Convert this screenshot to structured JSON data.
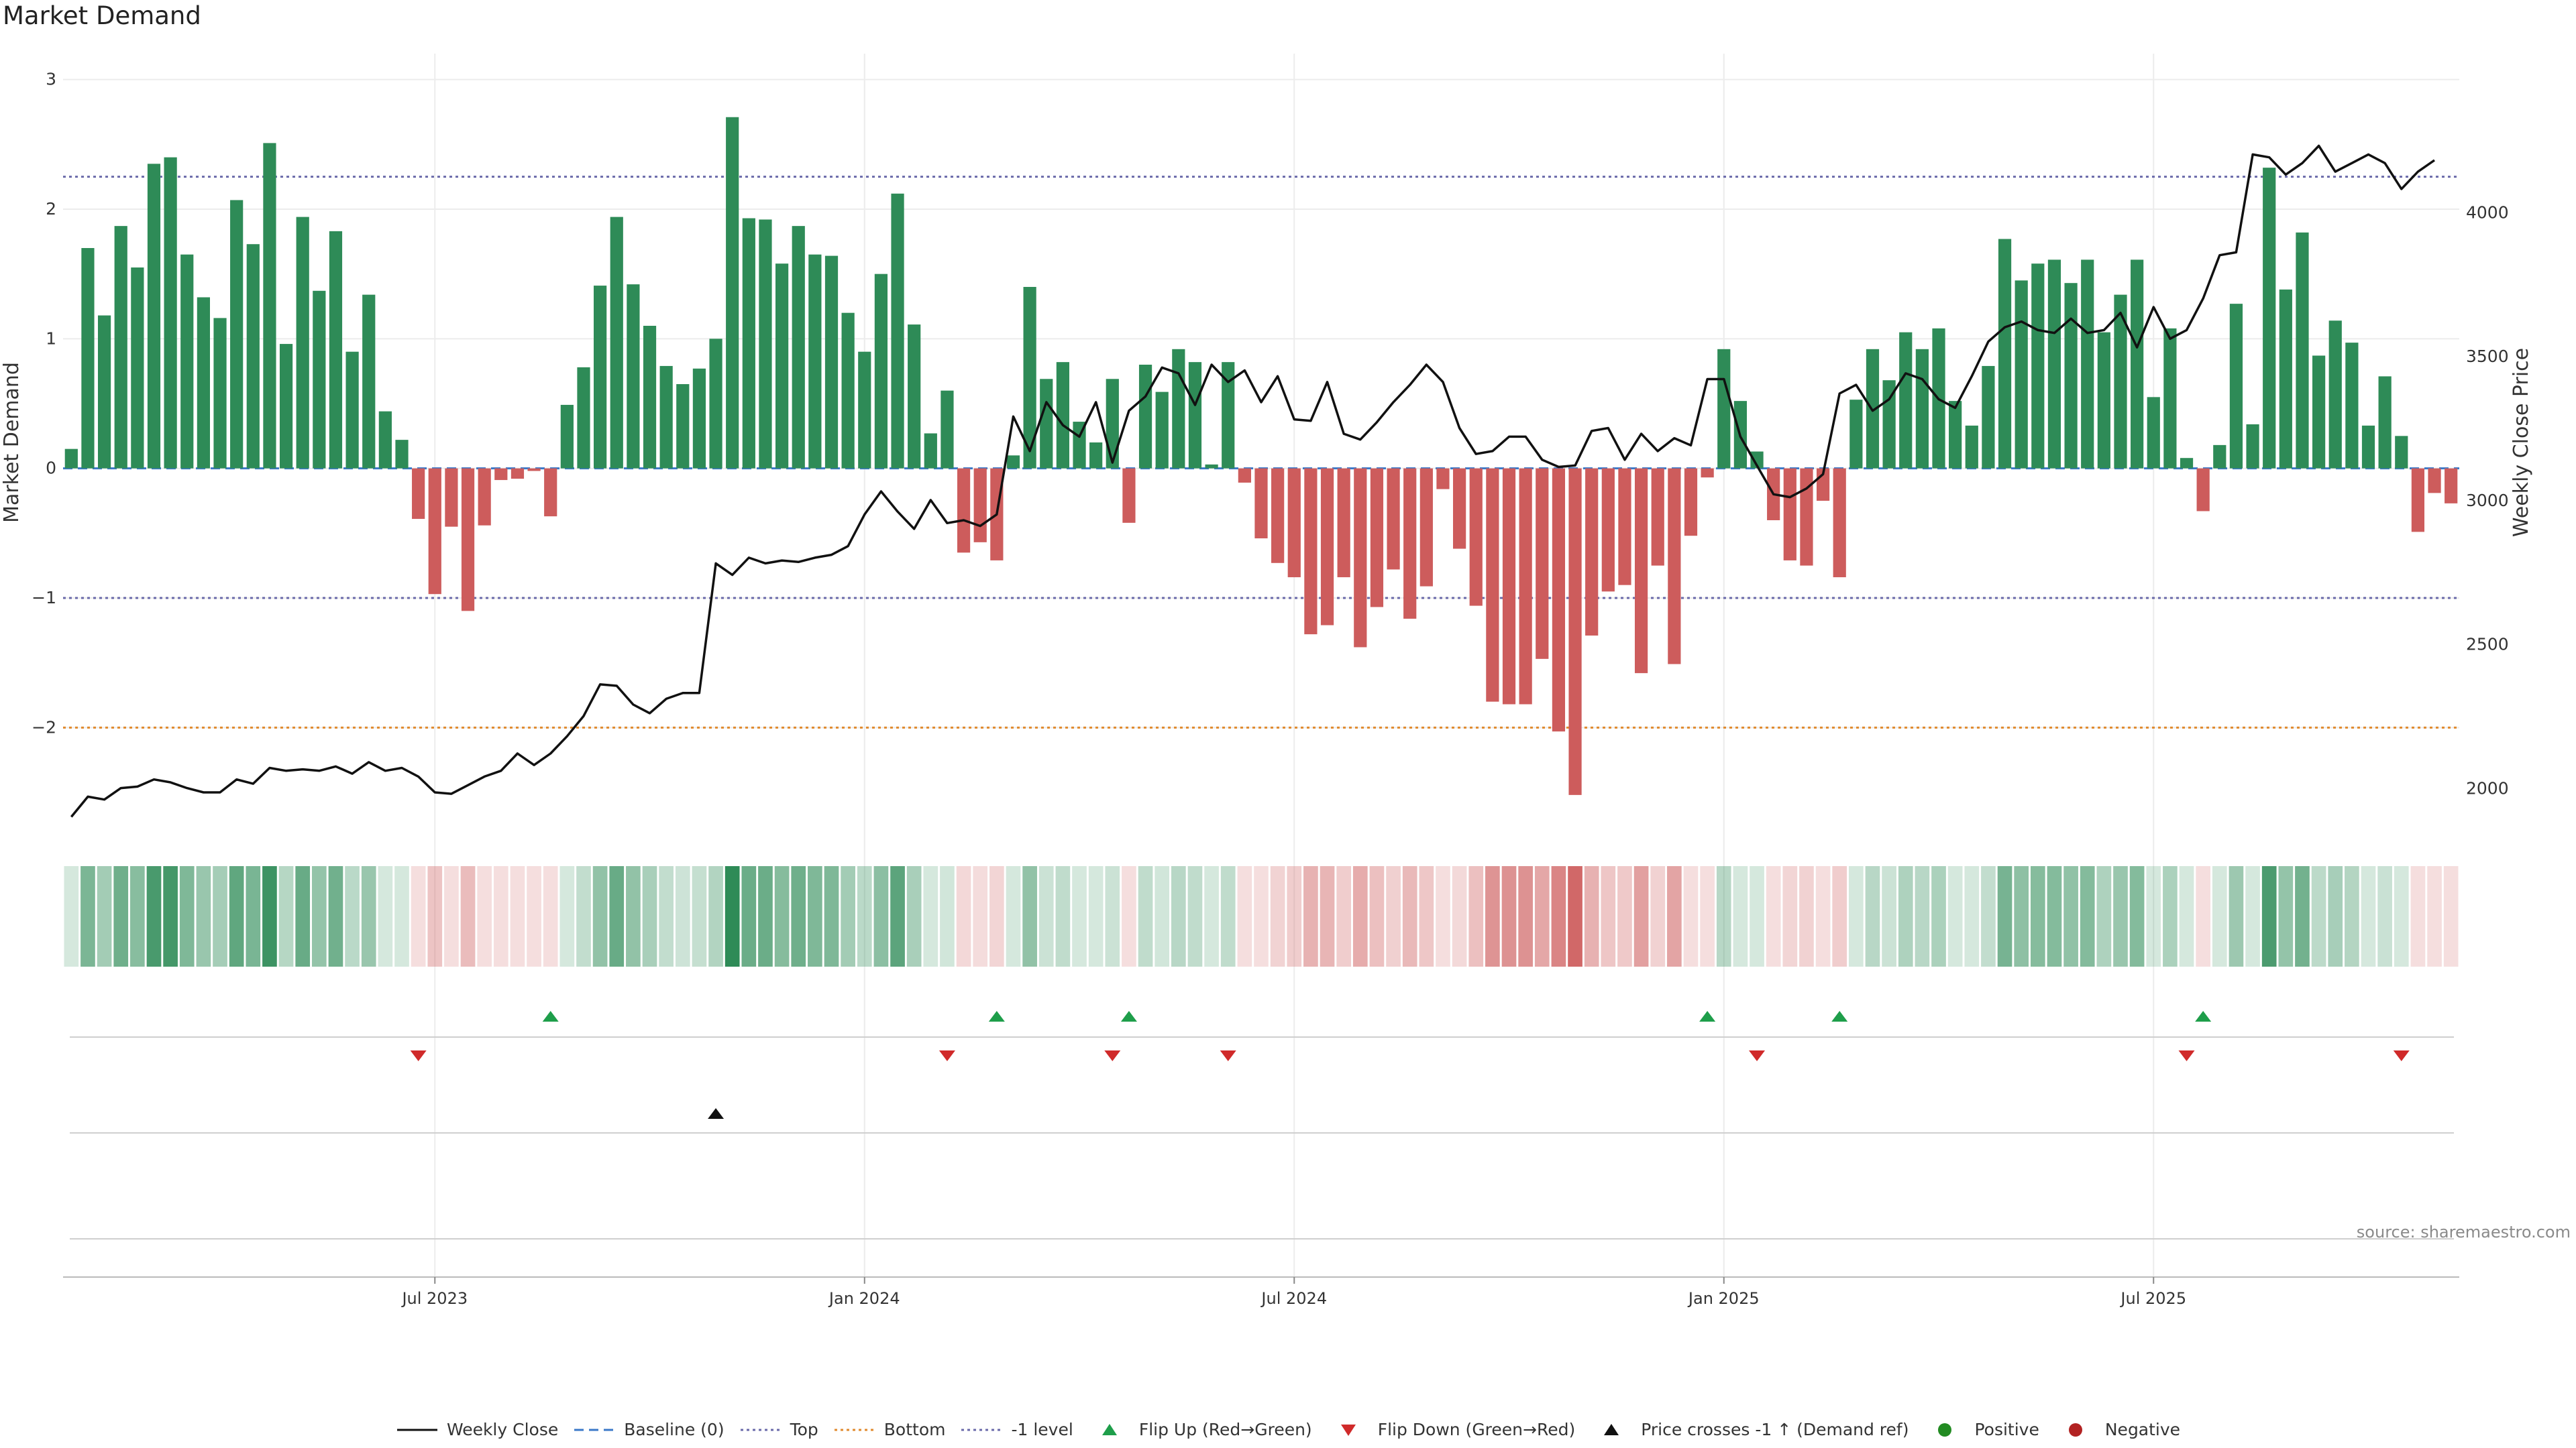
{
  "title": "Market Demand",
  "source_note": "source: sharemaestro.com",
  "colors": {
    "positive": "#2e8b57",
    "negative": "#cd5c5c",
    "price": "#111111",
    "top": "#6a6aaa",
    "bottom": "#e08a2e",
    "minus1": "#6a6aaa",
    "baseline": "#3a78c8",
    "flip_up": "#1e9e4a",
    "flip_down": "#d02a2a"
  },
  "legend": [
    {
      "key": "weekly_close",
      "label": "Weekly Close"
    },
    {
      "key": "baseline",
      "label": "Baseline (0)"
    },
    {
      "key": "top",
      "label": "Top"
    },
    {
      "key": "bottom",
      "label": "Bottom"
    },
    {
      "key": "minus1",
      "label": "-1 level"
    },
    {
      "key": "flip_up",
      "label": "Flip Up (Red→Green)"
    },
    {
      "key": "flip_down",
      "label": "Flip Down (Green→Red)"
    },
    {
      "key": "cross",
      "label": "Price crosses -1 ↑ (Demand ref)"
    },
    {
      "key": "positive",
      "label": "Positive"
    },
    {
      "key": "negative",
      "label": "Negative"
    }
  ],
  "chart_data": {
    "type": "bar",
    "title": "Market Demand",
    "ylabel": "Market Demand",
    "y2label": "Weekly Close Price",
    "ylim": [
      -2.8,
      3.2
    ],
    "y2lim": [
      1850,
      4550
    ],
    "yticks": [
      3,
      2,
      1,
      0,
      -1,
      -2
    ],
    "ytick_labels": [
      "3",
      "2",
      "1",
      "0",
      "−1",
      "−2"
    ],
    "y2ticks": [
      4000,
      3500,
      3000,
      2500,
      2000
    ],
    "y2tick_labels": [
      "4000",
      "3500",
      "3000",
      "2500",
      "2000"
    ],
    "xticks": [
      {
        "index": 22,
        "label": "Jul 2023"
      },
      {
        "index": 48,
        "label": "Jan 2024"
      },
      {
        "index": 74,
        "label": "Jul 2024"
      },
      {
        "index": 100,
        "label": "Jan 2025"
      },
      {
        "index": 126,
        "label": "Jul 2025"
      }
    ],
    "levels": {
      "top": 2.25,
      "bottom": -2.0,
      "minus1": -1.0,
      "baseline": 0
    },
    "demand": [
      0.15,
      1.7,
      1.18,
      1.87,
      1.55,
      2.35,
      2.4,
      1.65,
      1.32,
      1.16,
      2.07,
      1.73,
      2.51,
      0.96,
      1.94,
      1.37,
      1.83,
      0.9,
      1.34,
      0.44,
      0.22,
      -0.39,
      -0.97,
      -0.45,
      -1.1,
      -0.44,
      -0.09,
      -0.08,
      -0.02,
      -0.37,
      0.49,
      0.78,
      1.41,
      1.94,
      1.42,
      1.1,
      0.79,
      0.65,
      0.77,
      1.0,
      2.71,
      1.93,
      1.92,
      1.58,
      1.87,
      1.65,
      1.64,
      1.2,
      0.9,
      1.5,
      2.12,
      1.11,
      0.27,
      0.6,
      -0.65,
      -0.57,
      -0.71,
      0.1,
      1.4,
      0.69,
      0.82,
      0.36,
      0.2,
      0.69,
      -0.42,
      0.8,
      0.59,
      0.92,
      0.82,
      0.03,
      0.82,
      -0.11,
      -0.54,
      -0.73,
      -0.84,
      -1.28,
      -1.21,
      -0.84,
      -1.38,
      -1.07,
      -0.78,
      -1.16,
      -0.91,
      -0.16,
      -0.62,
      -1.06,
      -1.8,
      -1.82,
      -1.82,
      -1.47,
      -2.03,
      -2.52,
      -1.29,
      -0.95,
      -0.9,
      -1.58,
      -0.75,
      -1.51,
      -0.52,
      -0.07,
      0.92,
      0.52,
      0.13,
      -0.4,
      -0.71,
      -0.75,
      -0.25,
      -0.84,
      0.53,
      0.92,
      0.68,
      1.05,
      0.92,
      1.08,
      0.52,
      0.33,
      0.79,
      1.77,
      1.45,
      1.58,
      1.61,
      1.43,
      1.61,
      1.05,
      1.34,
      1.61,
      0.55,
      1.08,
      0.08,
      -0.33,
      0.18,
      1.27,
      0.34,
      2.32,
      1.38,
      1.82,
      0.87,
      1.14,
      0.97,
      0.33,
      0.71,
      0.25,
      -0.49,
      -0.19,
      -0.27
    ],
    "price": [
      1900,
      1970,
      1960,
      2000,
      2005,
      2030,
      2020,
      2000,
      1985,
      1985,
      2030,
      2015,
      2070,
      2060,
      2065,
      2060,
      2075,
      2050,
      2090,
      2060,
      2070,
      2040,
      1985,
      1980,
      2010,
      2040,
      2060,
      2120,
      2080,
      2120,
      2180,
      2250,
      2360,
      2355,
      2290,
      2260,
      2310,
      2330,
      2330,
      2780,
      2740,
      2800,
      2780,
      2790,
      2785,
      2800,
      2810,
      2840,
      2950,
      3030,
      2960,
      2900,
      3000,
      2920,
      2930,
      2910,
      2950,
      3290,
      3170,
      3340,
      3260,
      3220,
      3340,
      3130,
      3310,
      3360,
      3460,
      3440,
      3330,
      3470,
      3410,
      3450,
      3340,
      3430,
      3280,
      3275,
      3410,
      3230,
      3210,
      3270,
      3340,
      3400,
      3470,
      3410,
      3250,
      3160,
      3170,
      3220,
      3220,
      3140,
      3115,
      3120,
      3240,
      3250,
      3140,
      3230,
      3170,
      3215,
      3190,
      3420,
      3420,
      3220,
      3120,
      3020,
      3010,
      3040,
      3090,
      3370,
      3400,
      3310,
      3350,
      3440,
      3420,
      3350,
      3320,
      3430,
      3550,
      3600,
      3620,
      3590,
      3580,
      3630,
      3580,
      3590,
      3650,
      3530,
      3670,
      3560,
      3590,
      3700,
      3850,
      3860,
      4200,
      4190,
      4130,
      4170,
      4230,
      4140,
      4170,
      4200,
      4170,
      4080,
      4140,
      4180
    ],
    "flip_up_indices": [
      29,
      56,
      64,
      99,
      107,
      129
    ],
    "flip_down_indices": [
      21,
      53,
      63,
      70,
      102,
      128,
      141
    ],
    "price_cross_indices": [
      39
    ]
  }
}
